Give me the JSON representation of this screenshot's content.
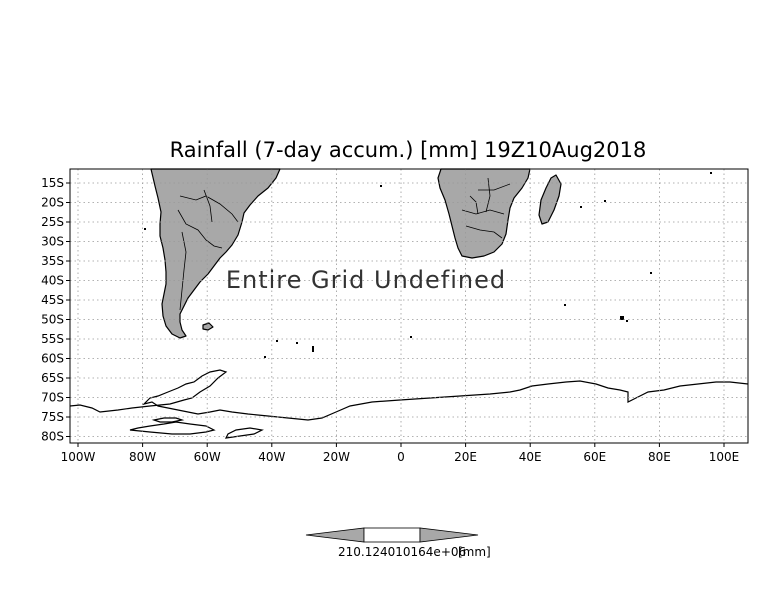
{
  "title": "Rainfall (7-day accum.) [mm] 19Z10Aug2018",
  "overlay_text": "Entire Grid Undefined",
  "lat_labels": [
    "15S",
    "20S",
    "25S",
    "30S",
    "35S",
    "40S",
    "45S",
    "50S",
    "55S",
    "60S",
    "65S",
    "70S",
    "75S",
    "80S"
  ],
  "lon_labels": [
    "100W",
    "80W",
    "60W",
    "40W",
    "20W",
    "0",
    "20E",
    "40E",
    "60E",
    "80E",
    "100E"
  ],
  "colorbar": {
    "value_text": "210.124010164e+06",
    "unit": "[mm]"
  },
  "colors": {
    "land": "#a8a8a8",
    "coast": "#000000",
    "grid": "#999999",
    "background": "#ffffff"
  }
}
